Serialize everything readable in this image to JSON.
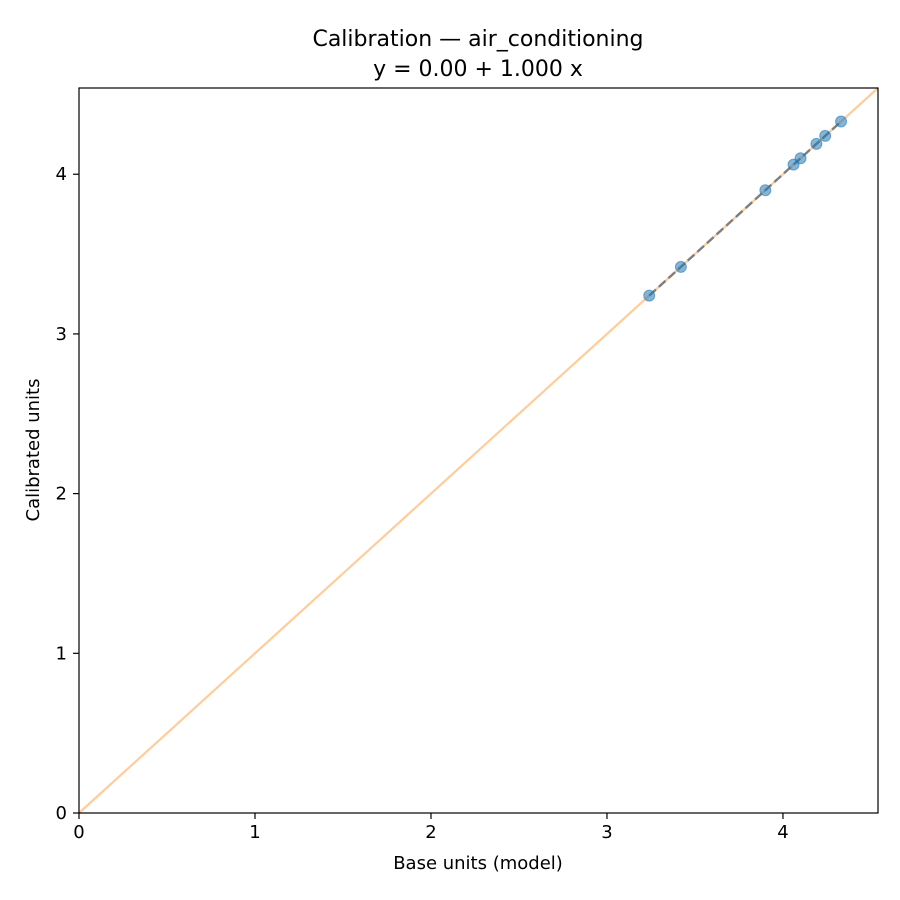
{
  "chart_data": {
    "type": "scatter",
    "title": "Calibration — air_conditioning",
    "subtitle": "y = 0.00 + 1.000 x",
    "xlabel": "Base units (model)",
    "ylabel": "Calibrated units",
    "xlim": [
      0,
      4.54
    ],
    "ylim": [
      0,
      4.54
    ],
    "xticks": [
      0,
      1,
      2,
      3,
      4
    ],
    "yticks": [
      0,
      1,
      2,
      3,
      4
    ],
    "grid": false,
    "points": {
      "x": [
        3.24,
        3.42,
        3.9,
        4.06,
        4.1,
        4.19,
        4.24,
        4.33
      ],
      "y": [
        3.24,
        3.42,
        3.9,
        4.06,
        4.1,
        4.19,
        4.24,
        4.33
      ],
      "color": "#1f77b4"
    },
    "identity_line": {
      "from": [
        0,
        0
      ],
      "to": [
        4.54,
        4.54
      ],
      "color": "#ffbb78"
    },
    "fit_line": {
      "intercept": 0.0,
      "slope": 1.0,
      "x_range": [
        3.24,
        4.33
      ],
      "color": "#7f7f7f",
      "style": "dashed"
    }
  }
}
